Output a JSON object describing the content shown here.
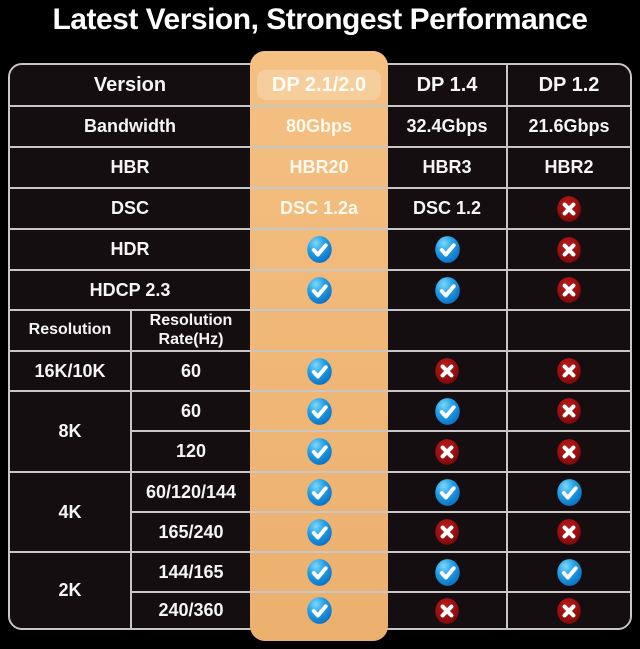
{
  "title": "Latest Version, Strongest Performance",
  "colors": {
    "background": "#000000",
    "highlight_orange": "#f0b878",
    "check_blue": "#1e9be4",
    "cross_red": "#9a1010",
    "grid_line": "#c9c7c5",
    "cell_background": "#140e11",
    "text": "#ffffff"
  },
  "icons": {
    "check": "check-icon",
    "cross": "cross-icon"
  },
  "table": {
    "cells": [
      {
        "r": 1,
        "c": 1,
        "cs": 2,
        "t": "text",
        "v": "Version",
        "variant": "header",
        "name": "header-version"
      },
      {
        "r": 1,
        "c": 3,
        "t": "text",
        "v": "DP 2.1/2.0",
        "variant": "header-highlight",
        "name": "header-dp21"
      },
      {
        "r": 1,
        "c": 4,
        "t": "text",
        "v": "DP 1.4",
        "variant": "header",
        "name": "header-dp14"
      },
      {
        "r": 1,
        "c": 5,
        "t": "text",
        "v": "DP 1.2",
        "variant": "header",
        "name": "header-dp12"
      },
      {
        "r": 2,
        "c": 1,
        "cs": 2,
        "t": "text",
        "v": "Bandwidth",
        "variant": "label",
        "name": "row-label-bandwidth"
      },
      {
        "r": 2,
        "c": 3,
        "t": "text",
        "v": "80Gbps",
        "variant": "orange",
        "name": "bandwidth-dp21"
      },
      {
        "r": 2,
        "c": 4,
        "t": "text",
        "v": "32.4Gbps",
        "variant": "value",
        "name": "bandwidth-dp14"
      },
      {
        "r": 2,
        "c": 5,
        "t": "text",
        "v": "21.6Gbps",
        "variant": "value",
        "name": "bandwidth-dp12"
      },
      {
        "r": 3,
        "c": 1,
        "cs": 2,
        "t": "text",
        "v": "HBR",
        "variant": "label",
        "name": "row-label-hbr"
      },
      {
        "r": 3,
        "c": 3,
        "t": "text",
        "v": "HBR20",
        "variant": "orange",
        "name": "hbr-dp21"
      },
      {
        "r": 3,
        "c": 4,
        "t": "text",
        "v": "HBR3",
        "variant": "value",
        "name": "hbr-dp14"
      },
      {
        "r": 3,
        "c": 5,
        "t": "text",
        "v": "HBR2",
        "variant": "value",
        "name": "hbr-dp12"
      },
      {
        "r": 4,
        "c": 1,
        "cs": 2,
        "t": "text",
        "v": "DSC",
        "variant": "label",
        "name": "row-label-dsc"
      },
      {
        "r": 4,
        "c": 3,
        "t": "text",
        "v": "DSC 1.2a",
        "variant": "orange",
        "name": "dsc-dp21"
      },
      {
        "r": 4,
        "c": 4,
        "t": "text",
        "v": "DSC 1.2",
        "variant": "value",
        "name": "dsc-dp14"
      },
      {
        "r": 4,
        "c": 5,
        "t": "cross",
        "name": "dsc-dp12"
      },
      {
        "r": 5,
        "c": 1,
        "cs": 2,
        "t": "text",
        "v": "HDR",
        "variant": "label",
        "name": "row-label-hdr"
      },
      {
        "r": 5,
        "c": 3,
        "t": "check",
        "name": "hdr-dp21"
      },
      {
        "r": 5,
        "c": 4,
        "t": "check",
        "name": "hdr-dp14"
      },
      {
        "r": 5,
        "c": 5,
        "t": "cross",
        "name": "hdr-dp12"
      },
      {
        "r": 6,
        "c": 1,
        "cs": 2,
        "t": "text",
        "v": "HDCP 2.3",
        "variant": "label",
        "name": "row-label-hdcp"
      },
      {
        "r": 6,
        "c": 3,
        "t": "check",
        "name": "hdcp-dp21"
      },
      {
        "r": 6,
        "c": 4,
        "t": "check",
        "name": "hdcp-dp14"
      },
      {
        "r": 6,
        "c": 5,
        "t": "cross",
        "name": "hdcp-dp12"
      },
      {
        "r": 7,
        "c": 1,
        "t": "text",
        "v": "Resolution",
        "variant": "subhead",
        "name": "subheader-resolution"
      },
      {
        "r": 7,
        "c": 2,
        "t": "text",
        "v": "Resolution Rate(Hz)",
        "variant": "subhead",
        "name": "subheader-resolution-rate"
      },
      {
        "r": 7,
        "c": 3,
        "t": "empty",
        "name": "empty-cell"
      },
      {
        "r": 7,
        "c": 4,
        "t": "empty",
        "name": "empty-cell"
      },
      {
        "r": 7,
        "c": 5,
        "t": "empty",
        "name": "empty-cell"
      },
      {
        "r": 8,
        "c": 1,
        "t": "text",
        "v": "16K/10K",
        "variant": "label",
        "name": "resolution-16k10k"
      },
      {
        "r": 8,
        "c": 2,
        "t": "text",
        "v": "60",
        "variant": "rate",
        "name": "rate-16k10k-60"
      },
      {
        "r": 8,
        "c": 3,
        "t": "check",
        "name": "r16k-60-dp21"
      },
      {
        "r": 8,
        "c": 4,
        "t": "cross",
        "name": "r16k-60-dp14"
      },
      {
        "r": 8,
        "c": 5,
        "t": "cross",
        "name": "r16k-60-dp12"
      },
      {
        "r": 9,
        "c": 1,
        "rs": 2,
        "t": "text",
        "v": "8K",
        "variant": "label",
        "name": "resolution-8k"
      },
      {
        "r": 9,
        "c": 2,
        "t": "text",
        "v": "60",
        "variant": "rate",
        "name": "rate-8k-60"
      },
      {
        "r": 9,
        "c": 3,
        "t": "check",
        "name": "r8k-60-dp21"
      },
      {
        "r": 9,
        "c": 4,
        "t": "check",
        "name": "r8k-60-dp14"
      },
      {
        "r": 9,
        "c": 5,
        "t": "cross",
        "name": "r8k-60-dp12"
      },
      {
        "r": 10,
        "c": 2,
        "t": "text",
        "v": "120",
        "variant": "rate",
        "name": "rate-8k-120"
      },
      {
        "r": 10,
        "c": 3,
        "t": "check",
        "name": "r8k-120-dp21"
      },
      {
        "r": 10,
        "c": 4,
        "t": "cross",
        "name": "r8k-120-dp14"
      },
      {
        "r": 10,
        "c": 5,
        "t": "cross",
        "name": "r8k-120-dp12"
      },
      {
        "r": 11,
        "c": 1,
        "rs": 2,
        "t": "text",
        "v": "4K",
        "variant": "label",
        "name": "resolution-4k"
      },
      {
        "r": 11,
        "c": 2,
        "t": "text",
        "v": "60/120/144",
        "variant": "rate",
        "name": "rate-4k-60-120-144"
      },
      {
        "r": 11,
        "c": 3,
        "t": "check",
        "name": "r4k-60-dp21"
      },
      {
        "r": 11,
        "c": 4,
        "t": "check",
        "name": "r4k-60-dp14"
      },
      {
        "r": 11,
        "c": 5,
        "t": "check",
        "name": "r4k-60-dp12"
      },
      {
        "r": 12,
        "c": 2,
        "t": "text",
        "v": "165/240",
        "variant": "rate",
        "name": "rate-4k-165-240"
      },
      {
        "r": 12,
        "c": 3,
        "t": "check",
        "name": "r4k-165-dp21"
      },
      {
        "r": 12,
        "c": 4,
        "t": "cross",
        "name": "r4k-165-dp14"
      },
      {
        "r": 12,
        "c": 5,
        "t": "cross",
        "name": "r4k-165-dp12"
      },
      {
        "r": 13,
        "c": 1,
        "rs": 2,
        "t": "text",
        "v": "2K",
        "variant": "label",
        "name": "resolution-2k"
      },
      {
        "r": 13,
        "c": 2,
        "t": "text",
        "v": "144/165",
        "variant": "rate",
        "name": "rate-2k-144-165"
      },
      {
        "r": 13,
        "c": 3,
        "t": "check",
        "name": "r2k-144-dp21"
      },
      {
        "r": 13,
        "c": 4,
        "t": "check",
        "name": "r2k-144-dp14"
      },
      {
        "r": 13,
        "c": 5,
        "t": "check",
        "name": "r2k-144-dp12"
      },
      {
        "r": 14,
        "c": 2,
        "t": "text",
        "v": "240/360",
        "variant": "rate",
        "name": "rate-2k-240-360"
      },
      {
        "r": 14,
        "c": 3,
        "t": "check",
        "name": "r2k-240-dp21"
      },
      {
        "r": 14,
        "c": 4,
        "t": "cross",
        "name": "r2k-240-dp14"
      },
      {
        "r": 14,
        "c": 5,
        "t": "cross",
        "name": "r2k-240-dp12"
      }
    ]
  },
  "chart_data": {
    "type": "table",
    "title": "Latest Version, Strongest Performance",
    "columns": [
      "Version",
      "DP 2.1/2.0",
      "DP 1.4",
      "DP 1.2"
    ],
    "highlight_column": "DP 2.1/2.0",
    "rows": [
      [
        "Bandwidth",
        "80Gbps",
        "32.4Gbps",
        "21.6Gbps"
      ],
      [
        "HBR",
        "HBR20",
        "HBR3",
        "HBR2"
      ],
      [
        "DSC",
        "DSC 1.2a",
        "DSC 1.2",
        "no"
      ],
      [
        "HDR",
        "yes",
        "yes",
        "no"
      ],
      [
        "HDCP 2.3",
        "yes",
        "yes",
        "no"
      ],
      [
        "16K/10K @ 60Hz",
        "yes",
        "no",
        "no"
      ],
      [
        "8K @ 60Hz",
        "yes",
        "yes",
        "no"
      ],
      [
        "8K @ 120Hz",
        "yes",
        "no",
        "no"
      ],
      [
        "4K @ 60/120/144Hz",
        "yes",
        "yes",
        "yes"
      ],
      [
        "4K @ 165/240Hz",
        "yes",
        "no",
        "no"
      ],
      [
        "2K @ 144/165Hz",
        "yes",
        "yes",
        "yes"
      ],
      [
        "2K @ 240/360Hz",
        "yes",
        "no",
        "no"
      ]
    ]
  }
}
